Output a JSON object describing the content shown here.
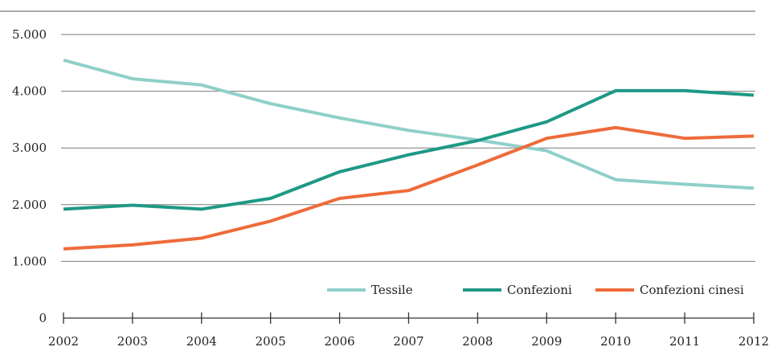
{
  "chart_data": {
    "type": "line",
    "x": [
      2002,
      2003,
      2004,
      2005,
      2006,
      2007,
      2008,
      2009,
      2010,
      2011,
      2012
    ],
    "x_tick_labels": [
      "2002",
      "2003",
      "2004",
      "2005",
      "2006",
      "2007",
      "2008",
      "2009",
      "2010",
      "2011",
      "2012"
    ],
    "y_ticks": [
      0,
      1000,
      2000,
      3000,
      4000,
      5000
    ],
    "y_tick_labels": [
      "0",
      "1.000",
      "2.000",
      "3.000",
      "4.000",
      "5.000"
    ],
    "ylim": [
      0,
      5000
    ],
    "xlim": [
      2002,
      2012
    ],
    "grid": "horizontal",
    "legend_position": "bottom-right",
    "series": [
      {
        "name": "Tessile",
        "color": "#8fd0c9",
        "values": [
          4550,
          4220,
          4110,
          3780,
          3530,
          3310,
          3140,
          2950,
          2440,
          2360,
          2290
        ]
      },
      {
        "name": "Confezioni",
        "color": "#1e9985",
        "values": [
          1920,
          1990,
          1920,
          2110,
          2580,
          2880,
          3130,
          3460,
          4010,
          4010,
          3930
        ]
      },
      {
        "name": "Confezioni cinesi",
        "color": "#ee6b3b",
        "values": [
          1220,
          1290,
          1410,
          1710,
          2110,
          2250,
          2700,
          3170,
          3360,
          3170,
          3210
        ]
      }
    ]
  }
}
